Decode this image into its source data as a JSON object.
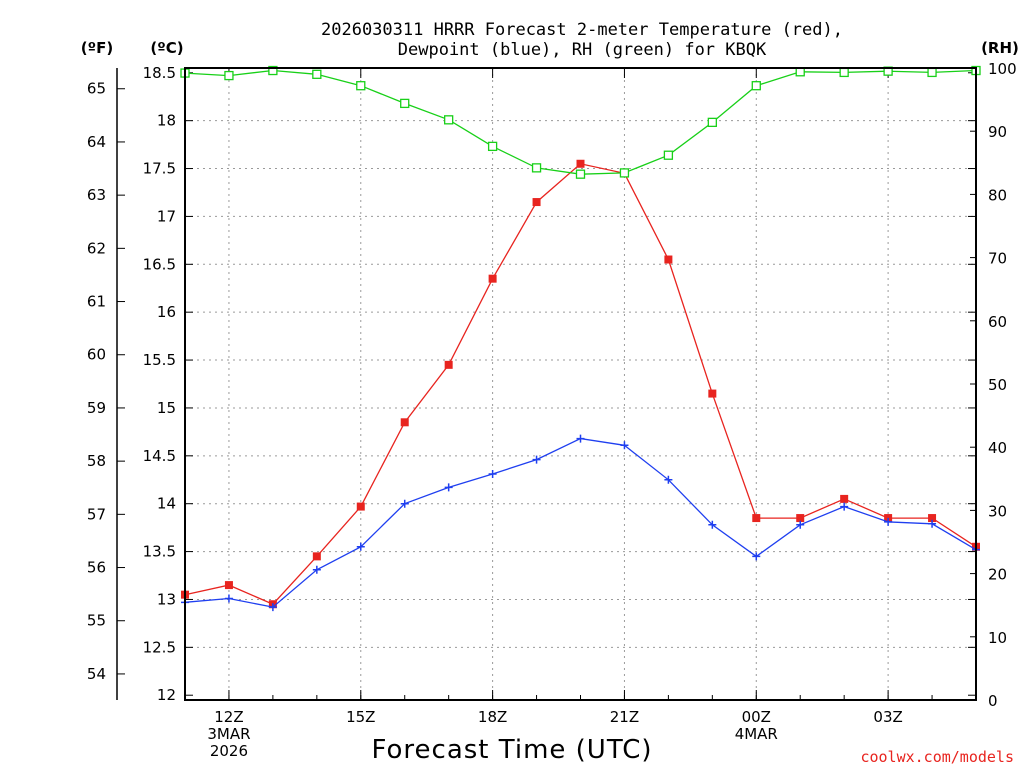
{
  "page": {
    "title_line1": "2026030311 HRRR Forecast 2-meter Temperature (red),",
    "title_line2": "Dewpoint (blue), RH (green) for KBQK",
    "credit": "coolwx.com/models"
  },
  "chart_data": {
    "type": "line",
    "title": "2026030311 HRRR Forecast 2-meter Temperature (red), Dewpoint (blue), RH (green) for KBQK",
    "xlabel": "Forecast Time (UTC)",
    "unit_left_outer": "(ºF)",
    "unit_left_inner": "(ºC)",
    "unit_right": "(RH)",
    "x_hours": [
      11,
      12,
      13,
      14,
      15,
      16,
      17,
      18,
      19,
      20,
      21,
      22,
      23,
      24,
      25,
      26,
      27,
      28,
      29
    ],
    "xlim": [
      11,
      29
    ],
    "x_ticks": [
      {
        "x": 12,
        "lines": [
          "12Z",
          "3MAR",
          "2026"
        ]
      },
      {
        "x": 15,
        "lines": [
          "15Z"
        ]
      },
      {
        "x": 18,
        "lines": [
          "18Z"
        ]
      },
      {
        "x": 21,
        "lines": [
          "21Z"
        ]
      },
      {
        "x": 24,
        "lines": [
          "00Z",
          "4MAR"
        ]
      },
      {
        "x": 27,
        "lines": [
          "03Z"
        ]
      }
    ],
    "celsius_axis": {
      "range": [
        11.95,
        18.55
      ],
      "ticks": [
        "12",
        "12.5",
        "13",
        "13.5",
        "14",
        "14.5",
        "15",
        "15.5",
        "16",
        "16.5",
        "17",
        "17.5",
        "18",
        "18.5"
      ]
    },
    "fahrenheit_axis": {
      "ticks": [
        "54",
        "55",
        "56",
        "57",
        "58",
        "59",
        "60",
        "61",
        "62",
        "63",
        "64",
        "65"
      ]
    },
    "rh_axis": {
      "range": [
        0,
        100
      ],
      "ticks": [
        "0",
        "10",
        "20",
        "30",
        "40",
        "50",
        "60",
        "70",
        "80",
        "90",
        "100"
      ]
    },
    "series": [
      {
        "name": "Temperature",
        "axis": "celsius",
        "color": "#e8241f",
        "marker": "filled-square",
        "values": [
          13.05,
          13.15,
          12.95,
          13.45,
          13.97,
          14.85,
          15.45,
          16.35,
          17.15,
          17.55,
          17.45,
          16.55,
          15.15,
          13.85,
          13.85,
          14.05,
          13.85,
          13.85,
          13.55
        ]
      },
      {
        "name": "Dewpoint",
        "axis": "celsius",
        "color": "#1f3ff0",
        "marker": "plus",
        "values": [
          12.97,
          13.01,
          12.92,
          13.31,
          13.55,
          14.0,
          14.17,
          14.31,
          14.46,
          14.68,
          14.61,
          14.25,
          13.78,
          13.45,
          13.78,
          13.97,
          13.81,
          13.79,
          13.52
        ]
      },
      {
        "name": "RH",
        "axis": "rh",
        "color": "#18d018",
        "marker": "open-square",
        "values": [
          99.2,
          98.8,
          99.6,
          99.0,
          97.2,
          94.4,
          91.8,
          87.6,
          84.2,
          83.2,
          83.4,
          86.2,
          91.4,
          97.2,
          99.4,
          99.3,
          99.5,
          99.3,
          99.6
        ]
      }
    ]
  }
}
